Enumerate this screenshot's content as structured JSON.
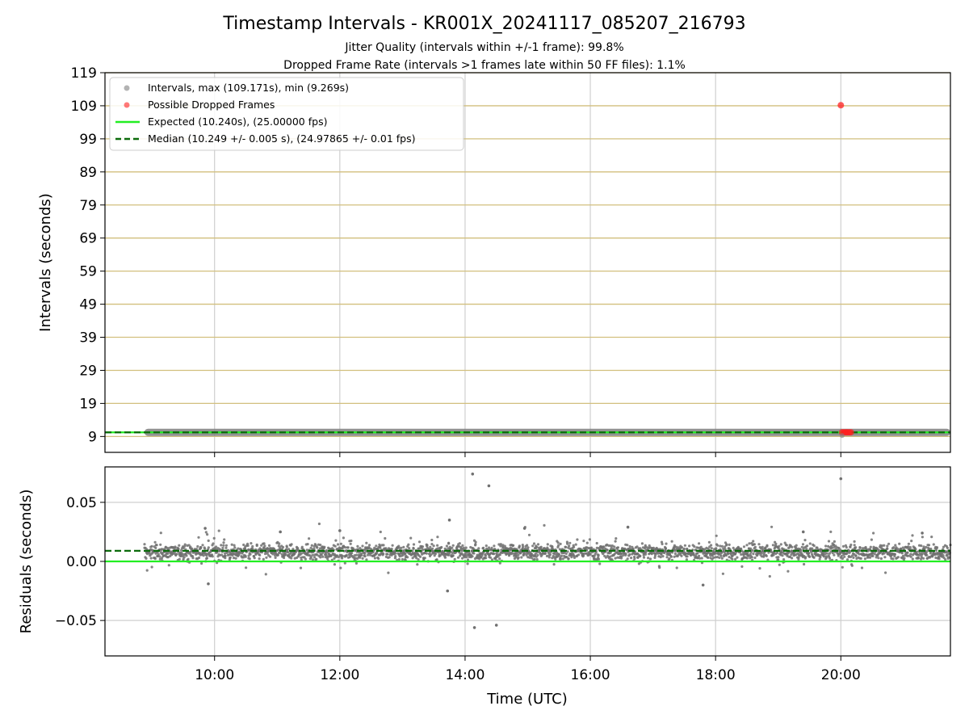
{
  "chart_data": [
    {
      "type": "scatter",
      "title": "Timestamp Intervals - KR001X_20241117_085207_216793",
      "subtitle_lines": [
        "Jitter Quality (intervals within +/-1 frame): 99.8%",
        "Dropped Frame Rate (intervals >1 frames late within 50 FF files): 1.1%"
      ],
      "xlabel": "",
      "ylabel": "Intervals (seconds)",
      "xlim_hours": [
        8.25,
        21.75
      ],
      "ylim": [
        4.2,
        119
      ],
      "yticks": [
        9,
        19,
        29,
        39,
        49,
        59,
        69,
        79,
        89,
        99,
        109,
        119
      ],
      "ytick_labels": [
        "9",
        "19",
        "29",
        "39",
        "49",
        "59",
        "69",
        "79",
        "89",
        "99",
        "109",
        "119"
      ],
      "grid": true,
      "legend_placement": "top-left",
      "series": [
        {
          "name": "Intervals, max (109.171s), min (9.269s)",
          "kind": "scatter",
          "color": "#808080",
          "x_start_hours": 8.88,
          "x_end_hours": 21.75,
          "y_value": 10.25,
          "y_max": 109.171,
          "y_min": 9.269
        },
        {
          "name": "Possible Dropped Frames",
          "kind": "scatter",
          "color": "#ff2020",
          "points": [
            {
              "x_hours": 20.0,
              "y": 109.171
            },
            {
              "x_hours": 20.02,
              "y": 10.25
            },
            {
              "x_hours": 20.05,
              "y": 10.25
            },
            {
              "x_hours": 20.08,
              "y": 10.25
            },
            {
              "x_hours": 20.1,
              "y": 10.25
            },
            {
              "x_hours": 20.13,
              "y": 10.25
            },
            {
              "x_hours": 20.16,
              "y": 10.25
            }
          ]
        },
        {
          "name": "Expected (10.240s), (25.00000 fps)",
          "kind": "line",
          "color": "#22ee22",
          "y": 10.24
        },
        {
          "name": "Median (10.249 +/- 0.005 s), (24.97865 +/- 0.01 fps)",
          "kind": "dashed-line",
          "color": "#0b6b0b",
          "y": 10.249
        }
      ]
    },
    {
      "type": "scatter",
      "title": "",
      "xlabel": "Time (UTC)",
      "ylabel": "Residuals (seconds)",
      "xlim_hours": [
        8.25,
        21.75
      ],
      "ylim": [
        -0.08,
        0.08
      ],
      "yticks": [
        -0.05,
        0.0,
        0.05
      ],
      "ytick_labels": [
        "−0.05",
        "0.00",
        "0.05"
      ],
      "xticks_hours": [
        10,
        12,
        14,
        16,
        18,
        20
      ],
      "xtick_labels": [
        "10:00",
        "12:00",
        "14:00",
        "16:00",
        "18:00",
        "20:00"
      ],
      "grid": true,
      "series": [
        {
          "kind": "scatter",
          "color": "#707070",
          "x_start_hours": 8.88,
          "x_end_hours": 21.75,
          "center": 0.008,
          "spread": 0.006,
          "outliers": [
            {
              "x_hours": 14.12,
              "y": 0.074
            },
            {
              "x_hours": 14.38,
              "y": 0.064
            },
            {
              "x_hours": 13.75,
              "y": 0.035
            },
            {
              "x_hours": 14.95,
              "y": 0.028
            },
            {
              "x_hours": 16.6,
              "y": 0.029
            },
            {
              "x_hours": 11.05,
              "y": 0.025
            },
            {
              "x_hours": 20.0,
              "y": 0.07
            },
            {
              "x_hours": 9.85,
              "y": 0.028
            },
            {
              "x_hours": 13.72,
              "y": -0.025
            },
            {
              "x_hours": 14.15,
              "y": -0.056
            },
            {
              "x_hours": 14.5,
              "y": -0.054
            },
            {
              "x_hours": 9.9,
              "y": -0.019
            },
            {
              "x_hours": 17.8,
              "y": -0.02
            },
            {
              "x_hours": 12.0,
              "y": 0.026
            },
            {
              "x_hours": 19.4,
              "y": 0.025
            },
            {
              "x_hours": 21.3,
              "y": 0.024
            }
          ]
        },
        {
          "kind": "line",
          "color": "#22ee22",
          "y": 0.0
        },
        {
          "kind": "dashed-line",
          "color": "#0b6b0b",
          "y": 0.009
        }
      ]
    }
  ]
}
